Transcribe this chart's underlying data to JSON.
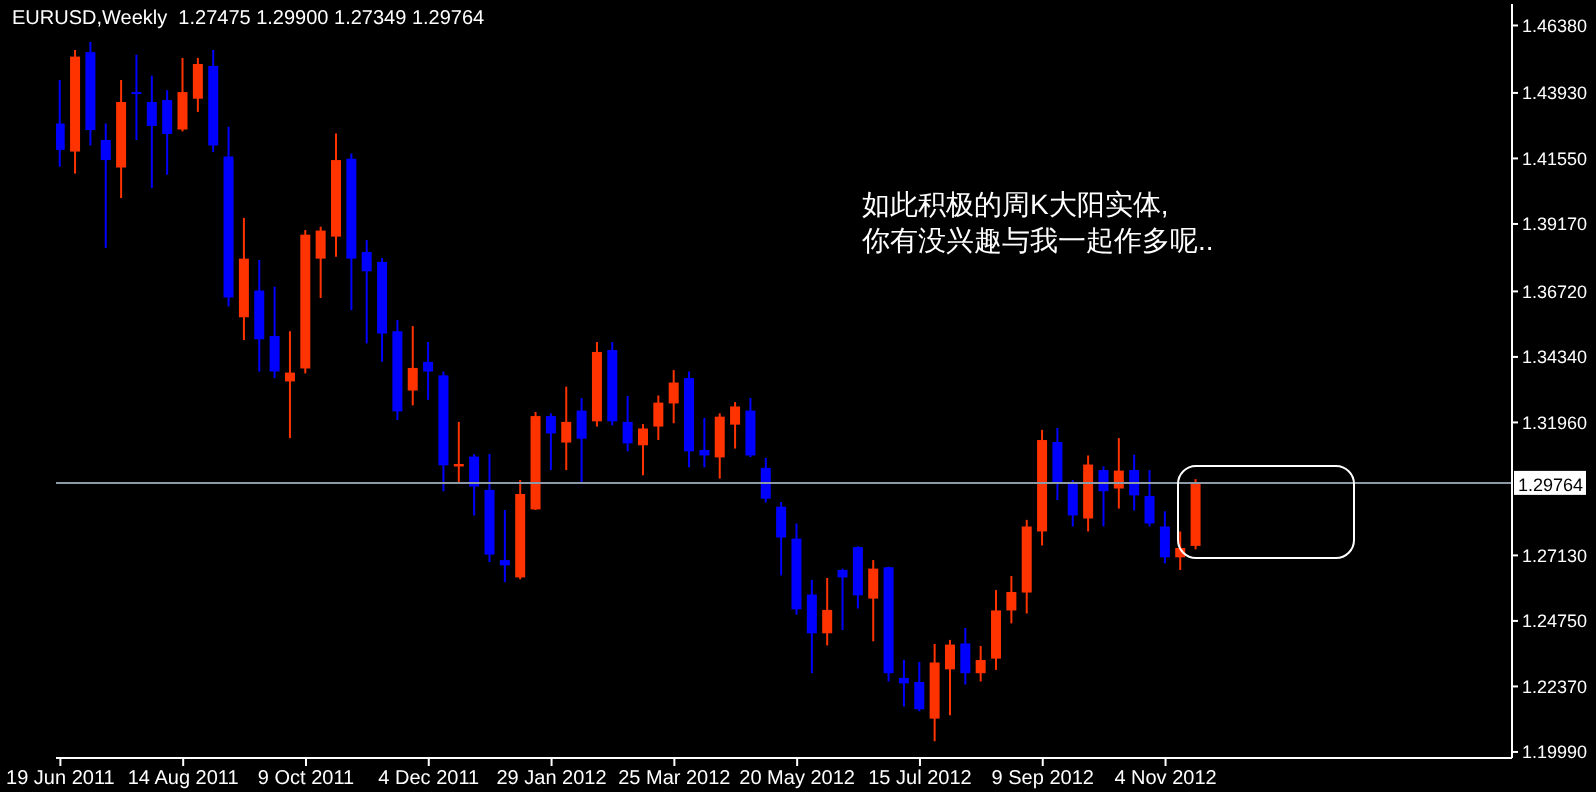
{
  "chart_data": {
    "type": "candlestick",
    "title": "EURUSD,Weekly  1.27475 1.29900 1.27349 1.29764",
    "x": [
      "2011-06-19",
      "2011-06-26",
      "2011-07-03",
      "2011-07-10",
      "2011-07-17",
      "2011-07-24",
      "2011-07-31",
      "2011-08-07",
      "2011-08-14",
      "2011-08-21",
      "2011-08-28",
      "2011-09-04",
      "2011-09-11",
      "2011-09-18",
      "2011-09-25",
      "2011-10-02",
      "2011-10-09",
      "2011-10-16",
      "2011-10-23",
      "2011-10-30",
      "2011-11-06",
      "2011-11-13",
      "2011-11-20",
      "2011-11-27",
      "2011-12-04",
      "2011-12-11",
      "2011-12-18",
      "2011-12-25",
      "2012-01-01",
      "2012-01-08",
      "2012-01-15",
      "2012-01-22",
      "2012-01-29",
      "2012-02-05",
      "2012-02-12",
      "2012-02-19",
      "2012-02-26",
      "2012-03-04",
      "2012-03-11",
      "2012-03-18",
      "2012-03-25",
      "2012-04-01",
      "2012-04-08",
      "2012-04-15",
      "2012-04-22",
      "2012-04-29",
      "2012-05-06",
      "2012-05-13",
      "2012-05-20",
      "2012-05-27",
      "2012-06-03",
      "2012-06-10",
      "2012-06-17",
      "2012-06-24",
      "2012-07-01",
      "2012-07-08",
      "2012-07-15",
      "2012-07-22",
      "2012-07-29",
      "2012-08-05",
      "2012-08-12",
      "2012-08-19",
      "2012-08-26",
      "2012-09-02",
      "2012-09-09",
      "2012-09-16",
      "2012-09-23",
      "2012-09-30",
      "2012-10-07",
      "2012-10-14",
      "2012-10-21",
      "2012-10-28",
      "2012-11-04",
      "2012-11-11",
      "2012-11-18"
    ],
    "ohlc": [
      [
        1.4282,
        1.444,
        1.4125,
        1.4186
      ],
      [
        1.418,
        1.4549,
        1.41,
        1.4525
      ],
      [
        1.4541,
        1.4578,
        1.4202,
        1.4258
      ],
      [
        1.4222,
        1.4282,
        1.383,
        1.4149
      ],
      [
        1.4122,
        1.444,
        1.4011,
        1.436
      ],
      [
        1.4396,
        1.4532,
        1.4222,
        1.4389
      ],
      [
        1.436,
        1.4456,
        1.4047,
        1.4273
      ],
      [
        1.4367,
        1.4403,
        1.4096,
        1.4244
      ],
      [
        1.426,
        1.452,
        1.4253,
        1.4396
      ],
      [
        1.4372,
        1.452,
        1.4324,
        1.4498
      ],
      [
        1.4491,
        1.4549,
        1.4178,
        1.4202
      ],
      [
        1.4162,
        1.427,
        1.3617,
        1.365
      ],
      [
        1.3578,
        1.3939,
        1.3495,
        1.3791
      ],
      [
        1.3675,
        1.3786,
        1.3381,
        1.3498
      ],
      [
        1.351,
        1.3689,
        1.3357,
        1.3381
      ],
      [
        1.3345,
        1.3527,
        1.3139,
        1.3377
      ],
      [
        1.3392,
        1.3895,
        1.3374,
        1.3878
      ],
      [
        1.3791,
        1.3907,
        1.3648,
        1.3893
      ],
      [
        1.3871,
        1.4246,
        1.3798,
        1.4149
      ],
      [
        1.4154,
        1.4173,
        1.3604,
        1.3791
      ],
      [
        1.3815,
        1.3859,
        1.3483,
        1.3745
      ],
      [
        1.3779,
        1.3793,
        1.3416,
        1.3519
      ],
      [
        1.3527,
        1.3568,
        1.3205,
        1.3236
      ],
      [
        1.3312,
        1.3546,
        1.3258,
        1.3394
      ],
      [
        1.3416,
        1.3488,
        1.3278,
        1.3381
      ],
      [
        1.3367,
        1.3381,
        1.2946,
        1.304
      ],
      [
        1.3036,
        1.3198,
        1.298,
        1.3045
      ],
      [
        1.3072,
        1.3081,
        1.2858,
        1.2963
      ],
      [
        1.2951,
        1.3081,
        1.2689,
        1.2716
      ],
      [
        1.2696,
        1.2878,
        1.2616,
        1.2677
      ],
      [
        1.2633,
        1.2987,
        1.2626,
        1.2936
      ],
      [
        1.288,
        1.3234,
        1.2878,
        1.3219
      ],
      [
        1.3219,
        1.3229,
        1.3023,
        1.3156
      ],
      [
        1.3123,
        1.3326,
        1.3023,
        1.3198
      ],
      [
        1.3239,
        1.3285,
        1.2975,
        1.3137
      ],
      [
        1.32,
        1.3488,
        1.3181,
        1.3452
      ],
      [
        1.3459,
        1.3488,
        1.3185,
        1.32
      ],
      [
        1.3198,
        1.3292,
        1.3091,
        1.312
      ],
      [
        1.3113,
        1.319,
        1.3004,
        1.3174
      ],
      [
        1.3181,
        1.3294,
        1.3132,
        1.3268
      ],
      [
        1.3265,
        1.3386,
        1.3193,
        1.3341
      ],
      [
        1.3357,
        1.3381,
        1.3033,
        1.3091
      ],
      [
        1.3096,
        1.3212,
        1.3033,
        1.3076
      ],
      [
        1.3069,
        1.3229,
        1.2992,
        1.3217
      ],
      [
        1.3188,
        1.327,
        1.3101,
        1.3254
      ],
      [
        1.3239,
        1.3285,
        1.307,
        1.3076
      ],
      [
        1.3031,
        1.3067,
        1.2905,
        1.2919
      ],
      [
        1.289,
        1.2907,
        1.264,
        1.2778
      ],
      [
        1.2774,
        1.2829,
        1.2498,
        1.2517
      ],
      [
        1.2571,
        1.2624,
        1.2285,
        1.243
      ],
      [
        1.243,
        1.2631,
        1.2386,
        1.2515
      ],
      [
        1.266,
        1.2665,
        1.2442,
        1.2633
      ],
      [
        1.2743,
        1.2746,
        1.252,
        1.2568
      ],
      [
        1.2556,
        1.2696,
        1.2401,
        1.2665
      ],
      [
        1.267,
        1.2672,
        1.2255,
        1.2285
      ],
      [
        1.2268,
        1.2333,
        1.2164,
        1.2248
      ],
      [
        1.2253,
        1.2326,
        1.2147,
        1.2154
      ],
      [
        1.212,
        1.2391,
        1.2038,
        1.2324
      ],
      [
        1.2299,
        1.2406,
        1.2132,
        1.2389
      ],
      [
        1.2393,
        1.2449,
        1.2244,
        1.2285
      ],
      [
        1.2285,
        1.2384,
        1.2255,
        1.2333
      ],
      [
        1.2338,
        1.2587,
        1.2297,
        1.2513
      ],
      [
        1.2513,
        1.2638,
        1.2466,
        1.258
      ],
      [
        1.2578,
        1.2842,
        1.2502,
        1.2818
      ],
      [
        1.28,
        1.3169,
        1.2749,
        1.3132
      ],
      [
        1.3125,
        1.3176,
        1.2914,
        1.2975
      ],
      [
        1.298,
        1.2987,
        1.2818,
        1.2858
      ],
      [
        1.2847,
        1.3076,
        1.28,
        1.3043
      ],
      [
        1.3023,
        1.3036,
        1.2818,
        1.2946
      ],
      [
        1.2956,
        1.3139,
        1.2883,
        1.3021
      ],
      [
        1.3023,
        1.3079,
        1.2876,
        1.2931
      ],
      [
        1.2929,
        1.3023,
        1.2818,
        1.2829
      ],
      [
        1.2818,
        1.2873,
        1.2684,
        1.2706
      ],
      [
        1.2706,
        1.28,
        1.266,
        1.274
      ],
      [
        1.27475,
        1.299,
        1.27349,
        1.29764
      ]
    ],
    "colors": [
      "#0000ff",
      "#ff3300",
      "#0000ff",
      "#0000ff",
      "#ff3300",
      "#0000ff",
      "#0000ff",
      "#0000ff",
      "#ff3300",
      "#ff3300",
      "#0000ff",
      "#0000ff",
      "#ff3300",
      "#0000ff",
      "#0000ff",
      "#ff3300",
      "#ff3300",
      "#ff3300",
      "#ff3300",
      "#0000ff",
      "#0000ff",
      "#0000ff",
      "#0000ff",
      "#ff3300",
      "#0000ff",
      "#0000ff",
      "#ff3300",
      "#0000ff",
      "#0000ff",
      "#0000ff",
      "#ff3300",
      "#ff3300",
      "#0000ff",
      "#ff3300",
      "#0000ff",
      "#ff3300",
      "#0000ff",
      "#0000ff",
      "#ff3300",
      "#ff3300",
      "#ff3300",
      "#0000ff",
      "#0000ff",
      "#ff3300",
      "#ff3300",
      "#0000ff",
      "#0000ff",
      "#0000ff",
      "#0000ff",
      "#0000ff",
      "#ff3300",
      "#0000ff",
      "#0000ff",
      "#ff3300",
      "#0000ff",
      "#0000ff",
      "#0000ff",
      "#ff3300",
      "#ff3300",
      "#0000ff",
      "#ff3300",
      "#ff3300",
      "#ff3300",
      "#ff3300",
      "#ff3300",
      "#0000ff",
      "#0000ff",
      "#ff3300",
      "#0000ff",
      "#ff3300",
      "#0000ff",
      "#0000ff",
      "#0000ff",
      "#ff3300",
      "#ff3300"
    ],
    "xlim": [
      "2011-06-17",
      "2013-04-11"
    ],
    "xticks": [
      {
        "value": "2011-06-19",
        "label": "19 Jun 2011"
      },
      {
        "value": "2011-08-14",
        "label": "14 Aug 2011"
      },
      {
        "value": "2011-10-09",
        "label": "9 Oct 2011"
      },
      {
        "value": "2011-12-04",
        "label": "4 Dec 2011"
      },
      {
        "value": "2012-01-29",
        "label": "29 Jan 2012"
      },
      {
        "value": "2012-03-25",
        "label": "25 Mar 2012"
      },
      {
        "value": "2012-05-20",
        "label": "20 May 2012"
      },
      {
        "value": "2012-07-15",
        "label": "15 Jul 2012"
      },
      {
        "value": "2012-09-09",
        "label": "9 Sep 2012"
      },
      {
        "value": "2012-11-04",
        "label": "4 Nov 2012"
      }
    ],
    "ylim": [
      1.1977,
      1.4716
    ],
    "yticks": [
      {
        "value": 1.1999,
        "label": "1.19990"
      },
      {
        "value": 1.2237,
        "label": "1.22370"
      },
      {
        "value": 1.2475,
        "label": "1.24750"
      },
      {
        "value": 1.2713,
        "label": "1.27130"
      },
      {
        "value": 1.3196,
        "label": "1.31960"
      },
      {
        "value": 1.3434,
        "label": "1.34340"
      },
      {
        "value": 1.3672,
        "label": "1.36720"
      },
      {
        "value": 1.3917,
        "label": "1.39170"
      },
      {
        "value": 1.4155,
        "label": "1.41550"
      },
      {
        "value": 1.4393,
        "label": "1.43930"
      },
      {
        "value": 1.4638,
        "label": "1.46380"
      }
    ],
    "ref_lines": [
      {
        "axis": "y",
        "value": 1.29764,
        "label": "1.29764",
        "color": "#8c9aa8"
      }
    ],
    "annotations": [
      "如此积极的周K大阳实体,",
      "你有没兴趣与我一起作多呢.."
    ]
  }
}
